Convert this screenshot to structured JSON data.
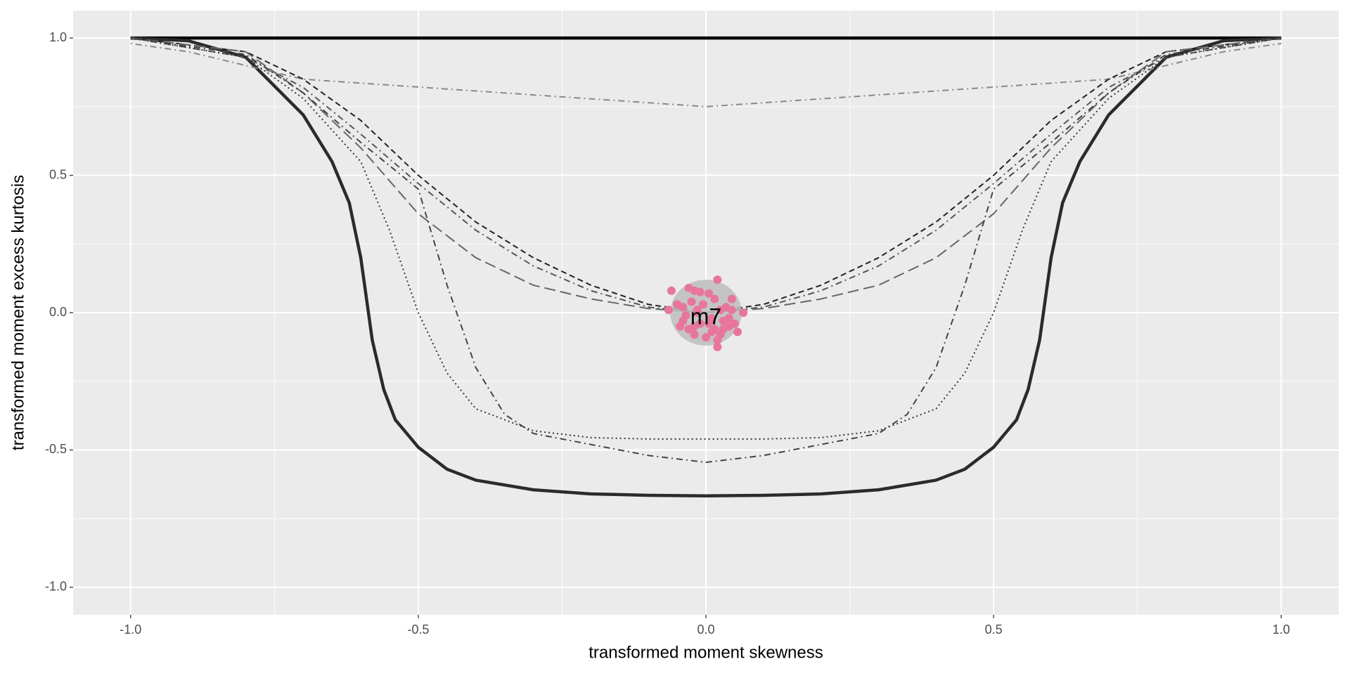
{
  "chart_data": {
    "type": "line",
    "xlabel": "transformed moment skewness",
    "ylabel": "transformed moment excess kurtosis",
    "xlim": [
      -1.1,
      1.1
    ],
    "ylim": [
      -1.1,
      1.1
    ],
    "xticks": [
      {
        "value": -1,
        "label": "-1.0"
      },
      -0.5,
      {
        "value": 0,
        "label": "0.0"
      },
      0.5,
      {
        "value": 1,
        "label": "1.0"
      }
    ],
    "yticks": [
      {
        "value": -1,
        "label": "-1.0"
      },
      -0.5,
      {
        "value": 0,
        "label": "0.0"
      },
      0.5,
      {
        "value": 1,
        "label": "1.0"
      }
    ],
    "x_minor_grid": [
      -0.75,
      -0.25,
      0.25,
      0.75
    ],
    "y_minor_grid": [
      -0.75,
      -0.25,
      0.25,
      0.75
    ],
    "grid": true,
    "series": [
      {
        "color": "#000000",
        "linetype": "solid",
        "width": 4.5,
        "x": [
          -1,
          1
        ],
        "y": [
          1,
          1
        ]
      },
      {
        "color": "#2b2b2b",
        "linetype": "solid",
        "width": 4.5,
        "x": [
          -1,
          -0.9,
          -0.8,
          -0.7,
          -0.65,
          -0.62,
          -0.6,
          -0.58,
          -0.56,
          -0.54,
          -0.5,
          -0.45,
          -0.4,
          -0.3,
          -0.2,
          -0.1,
          0,
          0.1,
          0.2,
          0.3,
          0.4,
          0.45,
          0.5,
          0.54,
          0.56,
          0.58,
          0.6,
          0.62,
          0.65,
          0.7,
          0.8,
          0.9,
          1
        ],
        "y": [
          1,
          0.99,
          0.93,
          0.72,
          0.55,
          0.4,
          0.2,
          -0.1,
          -0.28,
          -0.39,
          -0.49,
          -0.57,
          -0.61,
          -0.645,
          -0.66,
          -0.665,
          -0.667,
          -0.665,
          -0.66,
          -0.645,
          -0.61,
          -0.57,
          -0.49,
          -0.39,
          -0.28,
          -0.1,
          0.2,
          0.4,
          0.55,
          0.72,
          0.93,
          0.99,
          1
        ]
      },
      {
        "color": "#888888",
        "linetype": "dotdash",
        "width": 2,
        "x": [
          -1,
          -0.9,
          -0.8,
          -0.7,
          0,
          0.7,
          0.8,
          0.9,
          1
        ],
        "y": [
          0.98,
          0.95,
          0.9,
          0.85,
          0.75,
          0.85,
          0.9,
          0.95,
          0.98
        ]
      },
      {
        "color": "#222222",
        "linetype": "dashed",
        "width": 2,
        "x": [
          -1,
          -0.8,
          -0.7,
          -0.6,
          -0.5,
          -0.4,
          -0.3,
          -0.2,
          -0.1,
          0,
          0.1,
          0.2,
          0.3,
          0.4,
          0.5,
          0.6,
          0.7,
          0.8,
          1
        ],
        "y": [
          1,
          0.95,
          0.85,
          0.7,
          0.5,
          0.33,
          0.2,
          0.1,
          0.03,
          0,
          0.03,
          0.1,
          0.2,
          0.33,
          0.5,
          0.7,
          0.85,
          0.95,
          1
        ]
      },
      {
        "color": "#555555",
        "linetype": "dotdash",
        "width": 2,
        "x": [
          -1,
          -0.8,
          -0.7,
          -0.6,
          -0.5,
          -0.4,
          -0.3,
          -0.2,
          -0.1,
          0,
          0.1,
          0.2,
          0.3,
          0.4,
          0.5,
          0.6,
          0.7,
          0.8,
          1
        ],
        "y": [
          1,
          0.93,
          0.82,
          0.65,
          0.47,
          0.3,
          0.17,
          0.08,
          0.02,
          0,
          0.02,
          0.08,
          0.17,
          0.3,
          0.47,
          0.65,
          0.82,
          0.93,
          1
        ]
      },
      {
        "color": "#666666",
        "linetype": "longdash",
        "width": 2,
        "x": [
          -1,
          -0.8,
          -0.7,
          -0.6,
          -0.5,
          -0.4,
          -0.3,
          -0.2,
          -0.1,
          0,
          0.1,
          0.2,
          0.3,
          0.4,
          0.5,
          0.6,
          0.7,
          0.8,
          1
        ],
        "y": [
          1,
          0.95,
          0.8,
          0.6,
          0.36,
          0.2,
          0.1,
          0.05,
          0.015,
          0,
          0.015,
          0.05,
          0.1,
          0.2,
          0.36,
          0.6,
          0.8,
          0.95,
          1
        ]
      },
      {
        "color": "#333333",
        "linetype": "dotted",
        "width": 2,
        "x": [
          -1,
          -0.8,
          -0.7,
          -0.6,
          -0.55,
          -0.5,
          -0.45,
          -0.4,
          -0.3,
          -0.2,
          -0.1,
          0,
          0.1,
          0.2,
          0.3,
          0.4,
          0.45,
          0.5,
          0.55,
          0.6,
          0.7,
          0.8,
          1
        ],
        "y": [
          1,
          0.93,
          0.78,
          0.55,
          0.3,
          0,
          -0.22,
          -0.35,
          -0.43,
          -0.455,
          -0.46,
          -0.46,
          -0.46,
          -0.455,
          -0.43,
          -0.35,
          -0.22,
          0,
          0.3,
          0.55,
          0.78,
          0.93,
          1
        ]
      },
      {
        "color": "#444444",
        "linetype": "dotdash",
        "width": 2,
        "x": [
          -1,
          -0.8,
          -0.7,
          -0.6,
          -0.5,
          -0.45,
          -0.4,
          -0.35,
          -0.3,
          -0.2,
          -0.1,
          0,
          0.1,
          0.2,
          0.3,
          0.35,
          0.4,
          0.45,
          0.5,
          0.6,
          0.7,
          0.8,
          1
        ],
        "y": [
          1,
          0.94,
          0.8,
          0.62,
          0.45,
          0.1,
          -0.2,
          -0.37,
          -0.44,
          -0.48,
          -0.52,
          -0.545,
          -0.52,
          -0.48,
          -0.44,
          -0.37,
          -0.2,
          0.1,
          0.45,
          0.62,
          0.8,
          0.94,
          1
        ]
      }
    ],
    "ellipse": {
      "cx": 0,
      "cy": 0,
      "rx": 0.062,
      "ry": 0.12,
      "color": "#bdbdbd"
    },
    "points": {
      "color": "#e8769b",
      "x": [
        -0.06,
        -0.03,
        -0.02,
        -0.01,
        0.005,
        0.02,
        0.045,
        0.065,
        -0.065,
        -0.05,
        -0.04,
        -0.035,
        -0.025,
        -0.015,
        -0.005,
        0.01,
        0.015,
        0.025,
        0.03,
        0.035,
        0.04,
        0.05,
        0.055,
        -0.045,
        -0.03,
        -0.02,
        -0.01,
        0,
        0.01,
        0.02,
        0.03,
        0.04,
        -0.04,
        -0.02,
        0.005,
        0.025,
        0.045,
        -0.015,
        0.015,
        0.02
      ],
      "y": [
        0.08,
        0.09,
        0.08,
        0.075,
        0.07,
        0.12,
        0.05,
        0.0,
        0.01,
        0.03,
        0.02,
        -0.01,
        0.04,
        0.0,
        0.03,
        -0.02,
        0.05,
        0.01,
        -0.03,
        0.02,
        -0.05,
        -0.04,
        -0.07,
        -0.05,
        -0.06,
        -0.08,
        -0.04,
        -0.09,
        -0.07,
        -0.1,
        -0.06,
        -0.02,
        -0.03,
        -0.05,
        -0.04,
        -0.08,
        0.01,
        0.01,
        -0.06,
        -0.125
      ]
    },
    "annotation": {
      "text": "m7",
      "x": 0,
      "y": -0.02
    }
  }
}
